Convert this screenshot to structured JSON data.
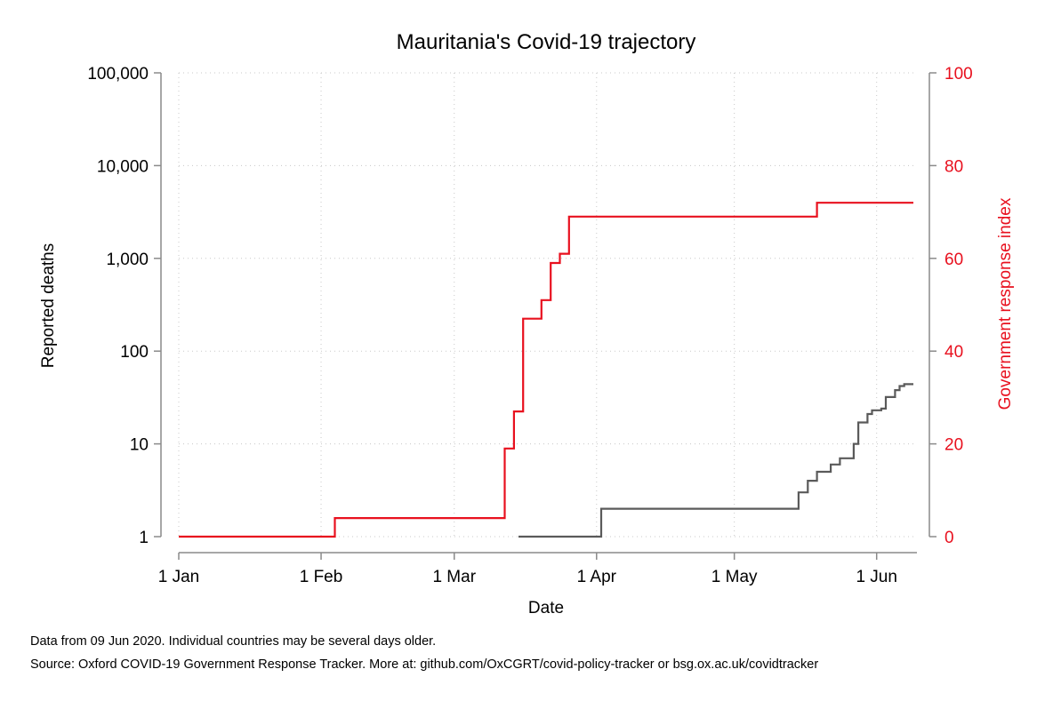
{
  "chart_data": {
    "type": "line",
    "title": "Mauritania's Covid-19 trajectory",
    "xlabel": "Date",
    "ylabel_left": "Reported deaths",
    "ylabel_right": "Government response index",
    "x_ticks": [
      "1 Jan",
      "1 Feb",
      "1 Mar",
      "1 Apr",
      "1 May",
      "1 Jun"
    ],
    "y_left_ticks": [
      "1",
      "10",
      "100",
      "1,000",
      "10,000",
      "100,000"
    ],
    "y_left_scale": "log",
    "y_left_range": [
      1,
      100000
    ],
    "y_right_ticks": [
      "0",
      "20",
      "40",
      "60",
      "80",
      "100"
    ],
    "y_right_range": [
      0,
      100
    ],
    "grid": true,
    "colors": {
      "deaths": "#5a5a5a",
      "index": "#e8101e",
      "axis": "#8a8a8a",
      "grid": "#c8c8c8"
    },
    "series": [
      {
        "axis": "left",
        "step": true,
        "points": [
          [
            "2020-03-15",
            1
          ],
          [
            "2020-04-02",
            2
          ],
          [
            "2020-05-15",
            3
          ],
          [
            "2020-05-17",
            4
          ],
          [
            "2020-05-19",
            5
          ],
          [
            "2020-05-22",
            6
          ],
          [
            "2020-05-24",
            7
          ],
          [
            "2020-05-27",
            10
          ],
          [
            "2020-05-28",
            17
          ],
          [
            "2020-05-30",
            21
          ],
          [
            "2020-05-31",
            23
          ],
          [
            "2020-06-02",
            24
          ],
          [
            "2020-06-03",
            32
          ],
          [
            "2020-06-05",
            38
          ],
          [
            "2020-06-06",
            42
          ],
          [
            "2020-06-07",
            44
          ],
          [
            "2020-06-09",
            44
          ]
        ]
      },
      {
        "axis": "right",
        "step": true,
        "points": [
          [
            "2020-01-01",
            0
          ],
          [
            "2020-02-04",
            4
          ],
          [
            "2020-03-12",
            19
          ],
          [
            "2020-03-14",
            27
          ],
          [
            "2020-03-16",
            47
          ],
          [
            "2020-03-20",
            51
          ],
          [
            "2020-03-22",
            59
          ],
          [
            "2020-03-24",
            61
          ],
          [
            "2020-03-26",
            69
          ],
          [
            "2020-05-19",
            72
          ],
          [
            "2020-06-09",
            72
          ]
        ]
      }
    ]
  },
  "notes": {
    "line1": "Data from 09 Jun 2020. Individual countries may be several days older.",
    "line2": "Source: Oxford COVID-19 Government Response Tracker. More at: github.com/OxCGRT/covid-policy-tracker or bsg.ox.ac.uk/covidtracker"
  }
}
